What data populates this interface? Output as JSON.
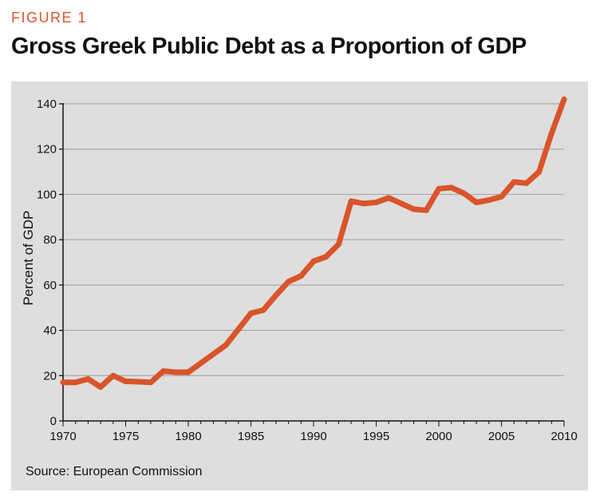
{
  "figure_label": "FIGURE 1",
  "source_text": "Source: European Commission",
  "colors": {
    "accent": "#d9542a",
    "line": "#d9542a",
    "panel_bg": "#dedede",
    "grid": "#ffffff"
  },
  "chart_data": {
    "type": "line",
    "title": "Gross Greek Public Debt as a Proportion of GDP",
    "xlabel": "",
    "ylabel": "Percent of GDP",
    "xlim": [
      1970,
      2010
    ],
    "ylim": [
      0,
      140
    ],
    "xticks": [
      1970,
      1975,
      1980,
      1985,
      1990,
      1995,
      2000,
      2005,
      2010
    ],
    "yticks": [
      0,
      20,
      40,
      60,
      80,
      100,
      120,
      140
    ],
    "grid": true,
    "series": [
      {
        "name": "Gross public debt (% of GDP)",
        "x": [
          1970,
          1971,
          1972,
          1973,
          1974,
          1975,
          1976,
          1977,
          1978,
          1979,
          1980,
          1981,
          1982,
          1983,
          1984,
          1985,
          1986,
          1987,
          1988,
          1989,
          1990,
          1991,
          1992,
          1993,
          1994,
          1995,
          1996,
          1997,
          1998,
          1999,
          2000,
          2001,
          2002,
          2003,
          2004,
          2005,
          2006,
          2007,
          2008,
          2009,
          2010
        ],
        "values": [
          17,
          17,
          18.5,
          15,
          20,
          17.5,
          17.3,
          17,
          22,
          21.5,
          21.5,
          25.5,
          29.5,
          33.5,
          40.5,
          47.5,
          49,
          55.5,
          61.5,
          64,
          70.5,
          72.5,
          78,
          97,
          96,
          96.5,
          98.5,
          96,
          93.5,
          93,
          102.5,
          103,
          100.5,
          96.5,
          97.5,
          99,
          105.5,
          105,
          110,
          127,
          142
        ]
      }
    ]
  }
}
